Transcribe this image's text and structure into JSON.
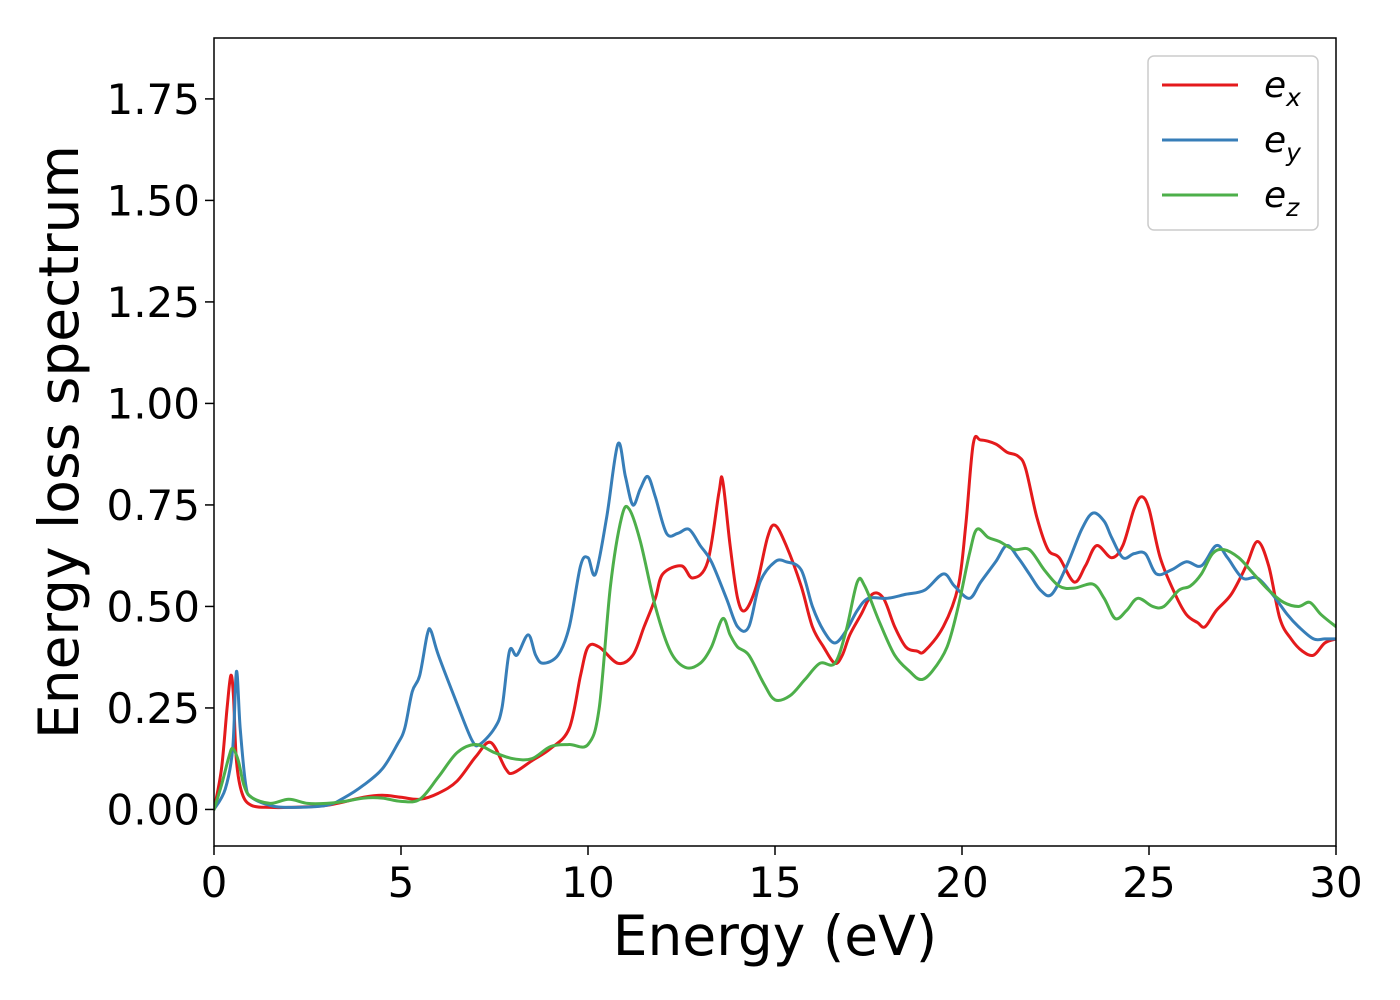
{
  "chart_data": {
    "type": "line",
    "title": "",
    "xlabel": "Energy (eV)",
    "ylabel": "Energy loss spectrum",
    "xlim": [
      0,
      30
    ],
    "ylim": [
      -0.09,
      1.9
    ],
    "xticks": [
      0,
      5,
      10,
      15,
      20,
      25,
      30
    ],
    "xtick_labels": [
      "0",
      "5",
      "10",
      "15",
      "20",
      "25",
      "30"
    ],
    "yticks": [
      0.0,
      0.25,
      0.5,
      0.75,
      1.0,
      1.25,
      1.5,
      1.75
    ],
    "ytick_labels": [
      "0.00",
      "0.25",
      "0.50",
      "0.75",
      "1.00",
      "1.25",
      "1.50",
      "1.75"
    ],
    "grid": false,
    "legend_position": "top-right",
    "series": [
      {
        "name": "e",
        "subscript": "x",
        "color": "#e41a1c",
        "points": [
          [
            0.0,
            0.0
          ],
          [
            0.2,
            0.1
          ],
          [
            0.35,
            0.25
          ],
          [
            0.45,
            0.33
          ],
          [
            0.52,
            0.28
          ],
          [
            0.6,
            0.12
          ],
          [
            0.75,
            0.04
          ],
          [
            1.0,
            0.01
          ],
          [
            1.5,
            0.005
          ],
          [
            2.0,
            0.005
          ],
          [
            3.0,
            0.01
          ],
          [
            4.0,
            0.03
          ],
          [
            4.5,
            0.035
          ],
          [
            5.0,
            0.03
          ],
          [
            5.5,
            0.025
          ],
          [
            6.0,
            0.04
          ],
          [
            6.5,
            0.07
          ],
          [
            7.0,
            0.13
          ],
          [
            7.4,
            0.165
          ],
          [
            7.8,
            0.1
          ],
          [
            8.0,
            0.09
          ],
          [
            8.5,
            0.12
          ],
          [
            9.0,
            0.15
          ],
          [
            9.5,
            0.2
          ],
          [
            9.8,
            0.33
          ],
          [
            10.0,
            0.4
          ],
          [
            10.3,
            0.4
          ],
          [
            10.8,
            0.36
          ],
          [
            11.2,
            0.38
          ],
          [
            11.5,
            0.45
          ],
          [
            11.8,
            0.52
          ],
          [
            12.0,
            0.58
          ],
          [
            12.5,
            0.6
          ],
          [
            12.8,
            0.57
          ],
          [
            13.2,
            0.61
          ],
          [
            13.5,
            0.78
          ],
          [
            13.6,
            0.81
          ],
          [
            13.8,
            0.65
          ],
          [
            14.0,
            0.52
          ],
          [
            14.2,
            0.49
          ],
          [
            14.5,
            0.55
          ],
          [
            14.8,
            0.67
          ],
          [
            15.0,
            0.7
          ],
          [
            15.3,
            0.65
          ],
          [
            15.7,
            0.55
          ],
          [
            16.0,
            0.45
          ],
          [
            16.3,
            0.4
          ],
          [
            16.6,
            0.36
          ],
          [
            16.8,
            0.38
          ],
          [
            17.0,
            0.43
          ],
          [
            17.3,
            0.48
          ],
          [
            17.6,
            0.53
          ],
          [
            17.9,
            0.52
          ],
          [
            18.2,
            0.45
          ],
          [
            18.5,
            0.4
          ],
          [
            18.8,
            0.39
          ],
          [
            19.0,
            0.39
          ],
          [
            19.5,
            0.45
          ],
          [
            19.9,
            0.55
          ],
          [
            20.1,
            0.7
          ],
          [
            20.3,
            0.9
          ],
          [
            20.5,
            0.91
          ],
          [
            20.9,
            0.9
          ],
          [
            21.2,
            0.88
          ],
          [
            21.5,
            0.87
          ],
          [
            21.7,
            0.84
          ],
          [
            22.0,
            0.72
          ],
          [
            22.3,
            0.64
          ],
          [
            22.6,
            0.62
          ],
          [
            23.0,
            0.56
          ],
          [
            23.3,
            0.6
          ],
          [
            23.6,
            0.65
          ],
          [
            24.0,
            0.62
          ],
          [
            24.3,
            0.65
          ],
          [
            24.6,
            0.74
          ],
          [
            24.8,
            0.77
          ],
          [
            25.0,
            0.74
          ],
          [
            25.3,
            0.62
          ],
          [
            25.7,
            0.53
          ],
          [
            26.0,
            0.48
          ],
          [
            26.3,
            0.46
          ],
          [
            26.5,
            0.45
          ],
          [
            26.8,
            0.49
          ],
          [
            27.2,
            0.53
          ],
          [
            27.6,
            0.6
          ],
          [
            27.9,
            0.66
          ],
          [
            28.2,
            0.6
          ],
          [
            28.5,
            0.47
          ],
          [
            28.8,
            0.42
          ],
          [
            29.1,
            0.39
          ],
          [
            29.4,
            0.38
          ],
          [
            29.7,
            0.41
          ],
          [
            30.0,
            0.42
          ]
        ]
      },
      {
        "name": "e",
        "subscript": "y",
        "color": "#377eb8",
        "points": [
          [
            0.0,
            0.0
          ],
          [
            0.3,
            0.05
          ],
          [
            0.5,
            0.15
          ],
          [
            0.6,
            0.34
          ],
          [
            0.7,
            0.2
          ],
          [
            0.85,
            0.06
          ],
          [
            1.0,
            0.03
          ],
          [
            1.5,
            0.01
          ],
          [
            2.0,
            0.005
          ],
          [
            3.0,
            0.01
          ],
          [
            3.5,
            0.03
          ],
          [
            4.0,
            0.06
          ],
          [
            4.5,
            0.1
          ],
          [
            4.9,
            0.16
          ],
          [
            5.1,
            0.2
          ],
          [
            5.3,
            0.29
          ],
          [
            5.5,
            0.33
          ],
          [
            5.7,
            0.43
          ],
          [
            5.8,
            0.44
          ],
          [
            6.0,
            0.38
          ],
          [
            6.5,
            0.26
          ],
          [
            6.9,
            0.17
          ],
          [
            7.1,
            0.16
          ],
          [
            7.5,
            0.2
          ],
          [
            7.7,
            0.25
          ],
          [
            7.9,
            0.39
          ],
          [
            8.1,
            0.38
          ],
          [
            8.4,
            0.43
          ],
          [
            8.6,
            0.38
          ],
          [
            8.8,
            0.36
          ],
          [
            9.2,
            0.38
          ],
          [
            9.5,
            0.45
          ],
          [
            9.8,
            0.6
          ],
          [
            10.0,
            0.62
          ],
          [
            10.2,
            0.58
          ],
          [
            10.5,
            0.72
          ],
          [
            10.8,
            0.9
          ],
          [
            11.0,
            0.82
          ],
          [
            11.2,
            0.75
          ],
          [
            11.4,
            0.79
          ],
          [
            11.6,
            0.82
          ],
          [
            11.8,
            0.77
          ],
          [
            12.1,
            0.68
          ],
          [
            12.4,
            0.68
          ],
          [
            12.7,
            0.69
          ],
          [
            13.0,
            0.65
          ],
          [
            13.3,
            0.61
          ],
          [
            13.7,
            0.52
          ],
          [
            14.0,
            0.45
          ],
          [
            14.3,
            0.45
          ],
          [
            14.6,
            0.56
          ],
          [
            15.0,
            0.61
          ],
          [
            15.3,
            0.61
          ],
          [
            15.7,
            0.59
          ],
          [
            16.0,
            0.5
          ],
          [
            16.3,
            0.44
          ],
          [
            16.6,
            0.41
          ],
          [
            16.9,
            0.44
          ],
          [
            17.2,
            0.49
          ],
          [
            17.5,
            0.52
          ],
          [
            18.0,
            0.52
          ],
          [
            18.5,
            0.53
          ],
          [
            19.0,
            0.54
          ],
          [
            19.5,
            0.58
          ],
          [
            19.8,
            0.55
          ],
          [
            20.2,
            0.52
          ],
          [
            20.5,
            0.56
          ],
          [
            20.9,
            0.61
          ],
          [
            21.2,
            0.65
          ],
          [
            21.5,
            0.62
          ],
          [
            21.8,
            0.58
          ],
          [
            22.1,
            0.54
          ],
          [
            22.4,
            0.53
          ],
          [
            22.8,
            0.6
          ],
          [
            23.2,
            0.69
          ],
          [
            23.5,
            0.73
          ],
          [
            23.8,
            0.71
          ],
          [
            24.0,
            0.67
          ],
          [
            24.3,
            0.62
          ],
          [
            24.6,
            0.63
          ],
          [
            24.9,
            0.63
          ],
          [
            25.2,
            0.58
          ],
          [
            25.6,
            0.59
          ],
          [
            26.0,
            0.61
          ],
          [
            26.4,
            0.6
          ],
          [
            26.8,
            0.65
          ],
          [
            27.1,
            0.62
          ],
          [
            27.5,
            0.57
          ],
          [
            27.9,
            0.57
          ],
          [
            28.3,
            0.53
          ],
          [
            28.7,
            0.48
          ],
          [
            29.0,
            0.45
          ],
          [
            29.4,
            0.42
          ],
          [
            29.7,
            0.42
          ],
          [
            30.0,
            0.42
          ]
        ]
      },
      {
        "name": "e",
        "subscript": "z",
        "color": "#4daf4a",
        "points": [
          [
            0.0,
            0.0
          ],
          [
            0.2,
            0.06
          ],
          [
            0.4,
            0.13
          ],
          [
            0.5,
            0.15
          ],
          [
            0.65,
            0.12
          ],
          [
            0.8,
            0.06
          ],
          [
            1.0,
            0.03
          ],
          [
            1.5,
            0.015
          ],
          [
            2.0,
            0.025
          ],
          [
            2.5,
            0.015
          ],
          [
            3.0,
            0.015
          ],
          [
            3.5,
            0.02
          ],
          [
            4.0,
            0.028
          ],
          [
            4.5,
            0.028
          ],
          [
            5.0,
            0.02
          ],
          [
            5.5,
            0.025
          ],
          [
            6.0,
            0.08
          ],
          [
            6.5,
            0.14
          ],
          [
            7.0,
            0.16
          ],
          [
            7.5,
            0.14
          ],
          [
            8.0,
            0.125
          ],
          [
            8.5,
            0.125
          ],
          [
            9.0,
            0.155
          ],
          [
            9.5,
            0.16
          ],
          [
            10.0,
            0.16
          ],
          [
            10.3,
            0.25
          ],
          [
            10.6,
            0.55
          ],
          [
            10.9,
            0.72
          ],
          [
            11.1,
            0.74
          ],
          [
            11.4,
            0.66
          ],
          [
            11.8,
            0.5
          ],
          [
            12.2,
            0.39
          ],
          [
            12.6,
            0.35
          ],
          [
            13.0,
            0.36
          ],
          [
            13.3,
            0.4
          ],
          [
            13.6,
            0.47
          ],
          [
            13.8,
            0.43
          ],
          [
            14.0,
            0.4
          ],
          [
            14.3,
            0.38
          ],
          [
            14.7,
            0.31
          ],
          [
            15.0,
            0.27
          ],
          [
            15.4,
            0.28
          ],
          [
            15.8,
            0.32
          ],
          [
            16.2,
            0.36
          ],
          [
            16.6,
            0.36
          ],
          [
            16.9,
            0.44
          ],
          [
            17.2,
            0.56
          ],
          [
            17.4,
            0.55
          ],
          [
            17.8,
            0.46
          ],
          [
            18.2,
            0.38
          ],
          [
            18.6,
            0.34
          ],
          [
            18.9,
            0.32
          ],
          [
            19.2,
            0.34
          ],
          [
            19.6,
            0.4
          ],
          [
            19.9,
            0.5
          ],
          [
            20.2,
            0.63
          ],
          [
            20.4,
            0.69
          ],
          [
            20.7,
            0.67
          ],
          [
            21.0,
            0.66
          ],
          [
            21.4,
            0.64
          ],
          [
            21.8,
            0.64
          ],
          [
            22.2,
            0.59
          ],
          [
            22.6,
            0.55
          ],
          [
            23.0,
            0.545
          ],
          [
            23.5,
            0.555
          ],
          [
            23.8,
            0.52
          ],
          [
            24.1,
            0.47
          ],
          [
            24.4,
            0.49
          ],
          [
            24.7,
            0.52
          ],
          [
            25.1,
            0.5
          ],
          [
            25.4,
            0.5
          ],
          [
            25.8,
            0.54
          ],
          [
            26.1,
            0.55
          ],
          [
            26.4,
            0.58
          ],
          [
            26.7,
            0.63
          ],
          [
            27.0,
            0.64
          ],
          [
            27.4,
            0.62
          ],
          [
            27.8,
            0.58
          ],
          [
            28.2,
            0.54
          ],
          [
            28.6,
            0.51
          ],
          [
            29.0,
            0.5
          ],
          [
            29.3,
            0.51
          ],
          [
            29.6,
            0.48
          ],
          [
            30.0,
            0.45
          ]
        ]
      }
    ]
  }
}
